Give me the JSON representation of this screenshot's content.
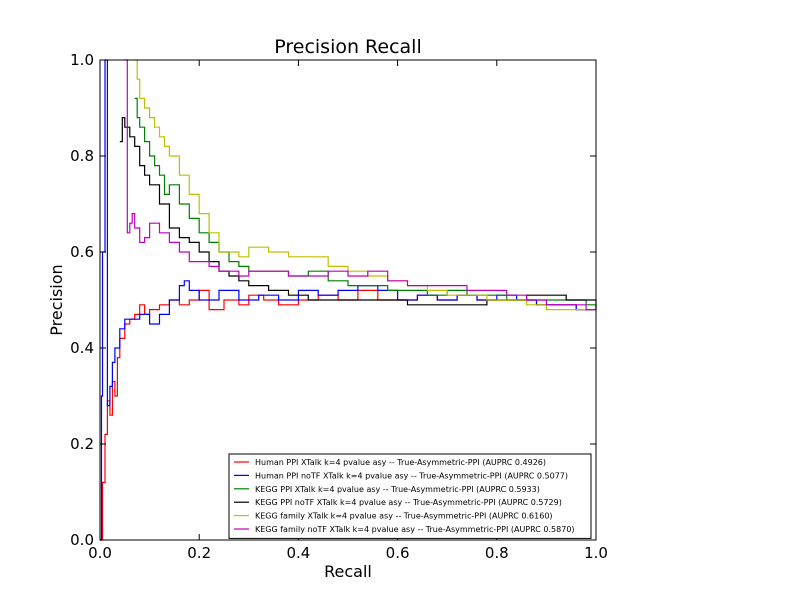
{
  "chart_data": {
    "type": "line",
    "title": "Precision Recall",
    "xlabel": "Recall",
    "ylabel": "Precision",
    "xlim": [
      0.0,
      1.0
    ],
    "ylim": [
      0.0,
      1.0
    ],
    "xticks": [
      "0.0",
      "0.2",
      "0.4",
      "0.6",
      "0.8",
      "1.0"
    ],
    "yticks": [
      "0.0",
      "0.2",
      "0.4",
      "0.6",
      "0.8",
      "1.0"
    ],
    "grid": false,
    "legend_position": "lower-right",
    "series": [
      {
        "name": "Human PPI XTalk k=4 pvalue asy -- True-Asymmetric-PPI (AUPRC 0.4926)",
        "color": "#ff0000",
        "x": [
          0.0,
          0.005,
          0.01,
          0.015,
          0.02,
          0.025,
          0.03,
          0.035,
          0.04,
          0.05,
          0.06,
          0.07,
          0.08,
          0.09,
          0.1,
          0.12,
          0.14,
          0.16,
          0.18,
          0.2,
          0.22,
          0.25,
          0.28,
          0.3,
          0.33,
          0.36,
          0.4,
          0.44,
          0.48,
          0.52,
          0.56,
          0.6,
          0.64,
          0.68,
          0.72,
          0.76,
          0.8,
          0.84,
          0.88,
          0.92,
          0.96,
          1.0
        ],
        "y": [
          0.0,
          0.12,
          0.22,
          0.29,
          0.26,
          0.33,
          0.3,
          0.38,
          0.42,
          0.45,
          0.46,
          0.47,
          0.49,
          0.47,
          0.48,
          0.49,
          0.5,
          0.49,
          0.5,
          0.52,
          0.48,
          0.5,
          0.49,
          0.51,
          0.5,
          0.49,
          0.5,
          0.51,
          0.5,
          0.52,
          0.5,
          0.5,
          0.51,
          0.5,
          0.51,
          0.5,
          0.5,
          0.5,
          0.49,
          0.49,
          0.48,
          0.48
        ]
      },
      {
        "name": "Human PPI noTF XTalk k=4 pvalue asy -- True-Asymmetric-PPI (AUPRC 0.5077)",
        "color": "#0000ff",
        "x": [
          0.0,
          0.003,
          0.005,
          0.01,
          0.012,
          0.015,
          0.02,
          0.025,
          0.03,
          0.04,
          0.05,
          0.06,
          0.08,
          0.1,
          0.12,
          0.14,
          0.16,
          0.17,
          0.18,
          0.2,
          0.24,
          0.28,
          0.32,
          0.36,
          0.4,
          0.44,
          0.48,
          0.52,
          0.56,
          0.6,
          0.64,
          0.68,
          0.72,
          0.76,
          0.8,
          0.84,
          0.88,
          0.92,
          0.96,
          1.0
        ],
        "y": [
          0.0,
          0.3,
          0.6,
          1.0,
          1.0,
          0.28,
          0.32,
          0.37,
          0.4,
          0.44,
          0.46,
          0.46,
          0.47,
          0.45,
          0.47,
          0.5,
          0.53,
          0.54,
          0.52,
          0.5,
          0.52,
          0.5,
          0.51,
          0.5,
          0.52,
          0.51,
          0.52,
          0.53,
          0.52,
          0.5,
          0.51,
          0.5,
          0.51,
          0.5,
          0.51,
          0.5,
          0.49,
          0.49,
          0.48,
          0.48
        ]
      },
      {
        "name": "KEGG PPI XTalk k=4 pvalue asy -- True-Asymmetric-PPI (AUPRC 0.5933)",
        "color": "#008000",
        "x": [
          0.07,
          0.075,
          0.08,
          0.09,
          0.1,
          0.11,
          0.12,
          0.13,
          0.14,
          0.16,
          0.18,
          0.2,
          0.22,
          0.24,
          0.26,
          0.28,
          0.3,
          0.34,
          0.38,
          0.42,
          0.46,
          0.5,
          0.54,
          0.58,
          0.62,
          0.66,
          0.7,
          0.74,
          0.78,
          0.82,
          0.86,
          0.9,
          0.94,
          0.98,
          1.0
        ],
        "y": [
          0.92,
          0.88,
          0.86,
          0.83,
          0.8,
          0.78,
          0.76,
          0.72,
          0.74,
          0.7,
          0.67,
          0.64,
          0.62,
          0.6,
          0.58,
          0.57,
          0.56,
          0.56,
          0.55,
          0.56,
          0.54,
          0.53,
          0.53,
          0.52,
          0.52,
          0.51,
          0.52,
          0.51,
          0.51,
          0.5,
          0.5,
          0.5,
          0.5,
          0.49,
          0.48
        ]
      },
      {
        "name": "KEGG PPI noTF XTalk k=4 pvalue asy -- True-Asymmetric-PPI (AUPRC 0.5729)",
        "color": "#000000",
        "x": [
          0.04,
          0.045,
          0.05,
          0.06,
          0.07,
          0.08,
          0.09,
          0.1,
          0.12,
          0.14,
          0.16,
          0.18,
          0.2,
          0.22,
          0.24,
          0.26,
          0.28,
          0.3,
          0.34,
          0.38,
          0.42,
          0.46,
          0.5,
          0.54,
          0.58,
          0.62,
          0.66,
          0.7,
          0.74,
          0.78,
          0.82,
          0.86,
          0.9,
          0.94,
          0.98,
          1.0
        ],
        "y": [
          0.83,
          0.88,
          0.86,
          0.84,
          0.82,
          0.78,
          0.76,
          0.74,
          0.7,
          0.65,
          0.63,
          0.62,
          0.6,
          0.58,
          0.56,
          0.55,
          0.54,
          0.53,
          0.52,
          0.51,
          0.5,
          0.5,
          0.5,
          0.5,
          0.5,
          0.49,
          0.49,
          0.49,
          0.49,
          0.5,
          0.5,
          0.51,
          0.51,
          0.5,
          0.5,
          0.48
        ]
      },
      {
        "name": "KEGG family XTalk k=4 pvalue asy -- True-Asymmetric-PPI (AUPRC 0.6160)",
        "color": "#bfbf00",
        "x": [
          0.07,
          0.075,
          0.08,
          0.09,
          0.1,
          0.11,
          0.12,
          0.13,
          0.14,
          0.16,
          0.18,
          0.2,
          0.22,
          0.24,
          0.26,
          0.28,
          0.3,
          0.34,
          0.38,
          0.42,
          0.46,
          0.5,
          0.54,
          0.58,
          0.62,
          0.66,
          0.7,
          0.74,
          0.78,
          0.82,
          0.86,
          0.9,
          0.94,
          0.98,
          1.0
        ],
        "y": [
          1.0,
          0.96,
          0.92,
          0.9,
          0.88,
          0.86,
          0.84,
          0.82,
          0.8,
          0.76,
          0.72,
          0.68,
          0.64,
          0.6,
          0.6,
          0.59,
          0.61,
          0.6,
          0.59,
          0.59,
          0.57,
          0.56,
          0.55,
          0.54,
          0.53,
          0.52,
          0.51,
          0.51,
          0.5,
          0.5,
          0.49,
          0.48,
          0.48,
          0.48,
          0.48
        ]
      },
      {
        "name": "KEGG family noTF XTalk k=4 pvalue asy -- True-Asymmetric-PPI (AUPRC 0.5870)",
        "color": "#bf00bf",
        "x": [
          0.05,
          0.055,
          0.06,
          0.065,
          0.07,
          0.08,
          0.09,
          0.1,
          0.12,
          0.14,
          0.16,
          0.18,
          0.2,
          0.22,
          0.24,
          0.26,
          0.28,
          0.3,
          0.34,
          0.38,
          0.42,
          0.46,
          0.5,
          0.54,
          0.58,
          0.62,
          0.66,
          0.7,
          0.74,
          0.78,
          0.82,
          0.86,
          0.9,
          0.94,
          0.98,
          1.0
        ],
        "y": [
          1.0,
          0.64,
          0.66,
          0.68,
          0.65,
          0.62,
          0.63,
          0.66,
          0.64,
          0.62,
          0.6,
          0.58,
          0.58,
          0.57,
          0.56,
          0.56,
          0.55,
          0.56,
          0.56,
          0.55,
          0.55,
          0.56,
          0.55,
          0.56,
          0.54,
          0.53,
          0.53,
          0.53,
          0.52,
          0.52,
          0.51,
          0.5,
          0.49,
          0.49,
          0.48,
          0.48
        ]
      }
    ]
  }
}
